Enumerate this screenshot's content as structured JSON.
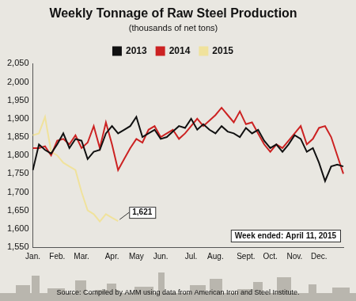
{
  "chart_data": {
    "type": "line",
    "title": "Weekly Tonnage of Raw Steel Production",
    "subtitle": "(thousands of net tons)",
    "categories": [
      "Jan.",
      null,
      null,
      null,
      "Feb.",
      null,
      null,
      null,
      "Mar.",
      null,
      null,
      null,
      null,
      "Apr.",
      null,
      null,
      null,
      "May",
      null,
      null,
      null,
      "Jun.",
      null,
      null,
      null,
      null,
      "Jul.",
      null,
      null,
      null,
      "Aug.",
      null,
      null,
      null,
      null,
      "Sept.",
      null,
      null,
      null,
      "Oct.",
      null,
      null,
      null,
      "Nov.",
      null,
      null,
      null,
      "Dec.",
      null,
      null,
      null,
      null
    ],
    "series": [
      {
        "name": "2013",
        "color": "#111111",
        "values": [
          1760,
          1830,
          1815,
          1805,
          1830,
          1860,
          1820,
          1845,
          1840,
          1790,
          1810,
          1815,
          1860,
          1880,
          1860,
          1870,
          1880,
          1905,
          1850,
          1860,
          1870,
          1845,
          1850,
          1865,
          1880,
          1875,
          1900,
          1870,
          1885,
          1870,
          1860,
          1880,
          1865,
          1860,
          1850,
          1875,
          1860,
          1870,
          1840,
          1820,
          1830,
          1810,
          1830,
          1855,
          1845,
          1810,
          1820,
          1780,
          1730,
          1770,
          1775,
          1770
        ]
      },
      {
        "name": "2014",
        "color": "#cc2222",
        "values": [
          1820,
          1820,
          1825,
          1800,
          1840,
          1845,
          1830,
          1855,
          1820,
          1835,
          1880,
          1820,
          1890,
          1830,
          1760,
          1790,
          1820,
          1845,
          1835,
          1870,
          1880,
          1850,
          1860,
          1870,
          1845,
          1860,
          1880,
          1900,
          1880,
          1895,
          1910,
          1930,
          1910,
          1890,
          1920,
          1885,
          1890,
          1860,
          1830,
          1810,
          1830,
          1820,
          1840,
          1860,
          1880,
          1830,
          1845,
          1875,
          1880,
          1850,
          1800,
          1750
        ]
      },
      {
        "name": "2015",
        "color": "#f0e29c",
        "values": [
          1855,
          1860,
          1905,
          1810,
          1800,
          1780,
          1770,
          1760,
          1700,
          1650,
          1640,
          1620,
          1640,
          1630,
          1621,
          null,
          null,
          null,
          null,
          null,
          null,
          null,
          null,
          null,
          null,
          null,
          null,
          null,
          null,
          null,
          null,
          null,
          null,
          null,
          null,
          null,
          null,
          null,
          null,
          null,
          null,
          null,
          null,
          null,
          null,
          null,
          null,
          null,
          null,
          null,
          null,
          null
        ]
      }
    ],
    "ylim": [
      1550,
      2050
    ],
    "yticks": [
      {
        "value": 1550,
        "label": "1,550"
      },
      {
        "value": 1600,
        "label": "1,600"
      },
      {
        "value": 1650,
        "label": "1,650"
      },
      {
        "value": 1700,
        "label": "1,700"
      },
      {
        "value": 1750,
        "label": "1,750"
      },
      {
        "value": 1800,
        "label": "1,800"
      },
      {
        "value": 1850,
        "label": "1,850"
      },
      {
        "value": 1900,
        "label": "1,900"
      },
      {
        "value": 1950,
        "label": "1,950"
      },
      {
        "value": 2000,
        "label": "2,000"
      },
      {
        "value": 2050,
        "label": "2,050"
      }
    ],
    "grid": false,
    "legend": "top",
    "annotations": [
      {
        "text": "1,621",
        "x": 14,
        "y": 1621
      }
    ],
    "note": "Week ended: April 11, 2015",
    "source": "Source: Compiled by AMM using data from American Iron and Steel Institute."
  }
}
